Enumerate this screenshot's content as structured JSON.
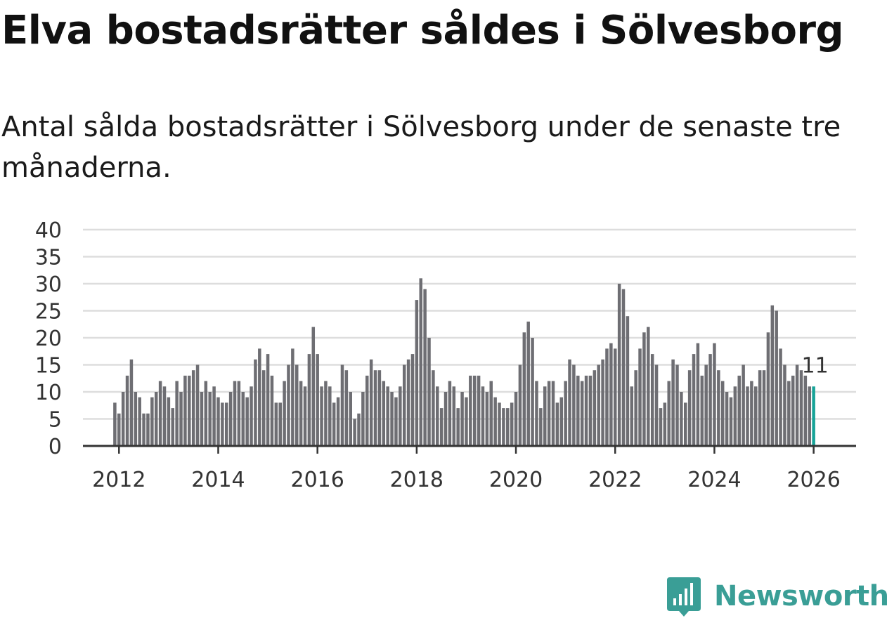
{
  "header": {
    "title": "Elva bostadsrätter såldes i Sölvesborg",
    "subtitle": "Antal sålda bostadsrätter i Sölvesborg under de senaste tre månaderna."
  },
  "colors": {
    "bar": "#6e6e73",
    "highlight": "#17a398",
    "grid": "#dddddd",
    "axis": "#333333",
    "brand": "#3a9e96"
  },
  "chart_data": {
    "type": "bar",
    "title": "Elva bostadsrätter såldes i Sölvesborg",
    "xlabel": "",
    "ylabel": "",
    "ylim": [
      0,
      40
    ],
    "yticks": [
      "0",
      "5",
      "10",
      "15",
      "20",
      "25",
      "30",
      "35",
      "40"
    ],
    "xticks": [
      "2012",
      "2014",
      "2016",
      "2018",
      "2020",
      "2022",
      "2024",
      "2026"
    ],
    "start": "2011-12",
    "values": [
      8,
      6,
      10,
      13,
      16,
      10,
      9,
      6,
      6,
      9,
      10,
      12,
      11,
      9,
      7,
      12,
      10,
      13,
      13,
      14,
      15,
      10,
      12,
      10,
      11,
      9,
      8,
      8,
      10,
      12,
      12,
      10,
      9,
      11,
      16,
      18,
      14,
      17,
      13,
      8,
      8,
      12,
      15,
      18,
      15,
      12,
      11,
      17,
      22,
      17,
      11,
      12,
      11,
      8,
      9,
      15,
      14,
      10,
      5,
      6,
      10,
      13,
      16,
      14,
      14,
      12,
      11,
      10,
      9,
      11,
      15,
      16,
      17,
      27,
      31,
      29,
      20,
      14,
      11,
      7,
      10,
      12,
      11,
      7,
      10,
      9,
      13,
      13,
      13,
      11,
      10,
      12,
      9,
      8,
      7,
      7,
      8,
      10,
      15,
      21,
      23,
      20,
      12,
      7,
      11,
      12,
      12,
      8,
      9,
      12,
      16,
      15,
      13,
      12,
      13,
      13,
      14,
      15,
      16,
      18,
      19,
      18,
      30,
      29,
      24,
      11,
      14,
      18,
      21,
      22,
      17,
      15,
      7,
      8,
      12,
      16,
      15,
      10,
      8,
      14,
      17,
      19,
      13,
      15,
      17,
      19,
      14,
      12,
      10,
      9,
      11,
      13,
      15,
      11,
      12,
      11,
      14,
      14,
      21,
      26,
      25,
      18,
      15,
      12,
      13,
      15,
      14,
      13,
      11,
      11
    ],
    "highlight_label": "11"
  },
  "brand": {
    "name": "Newsworthy",
    "icon": "newsworthy-logo-icon"
  }
}
